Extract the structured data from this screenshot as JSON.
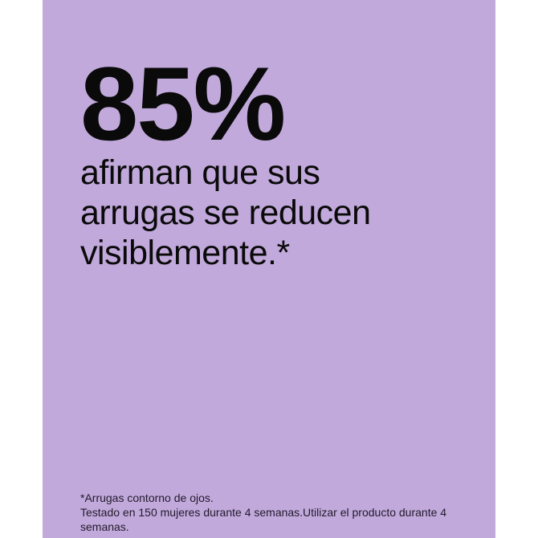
{
  "colors": {
    "page_background": "#ffffff",
    "panel_background": "#c1a9db",
    "headline_text": "#0a0a0a",
    "footnote_text": "#221a2b"
  },
  "stat": {
    "value": "85%",
    "description_lines": [
      "afirman que sus",
      "arrugas se reducen",
      "visiblemente.*"
    ]
  },
  "footnote": {
    "lines": [
      "*Arrugas contorno de ojos.",
      "Testado en 150 mujeres durante 4 semanas.Utilizar el producto durante 4",
      "semanas."
    ]
  }
}
